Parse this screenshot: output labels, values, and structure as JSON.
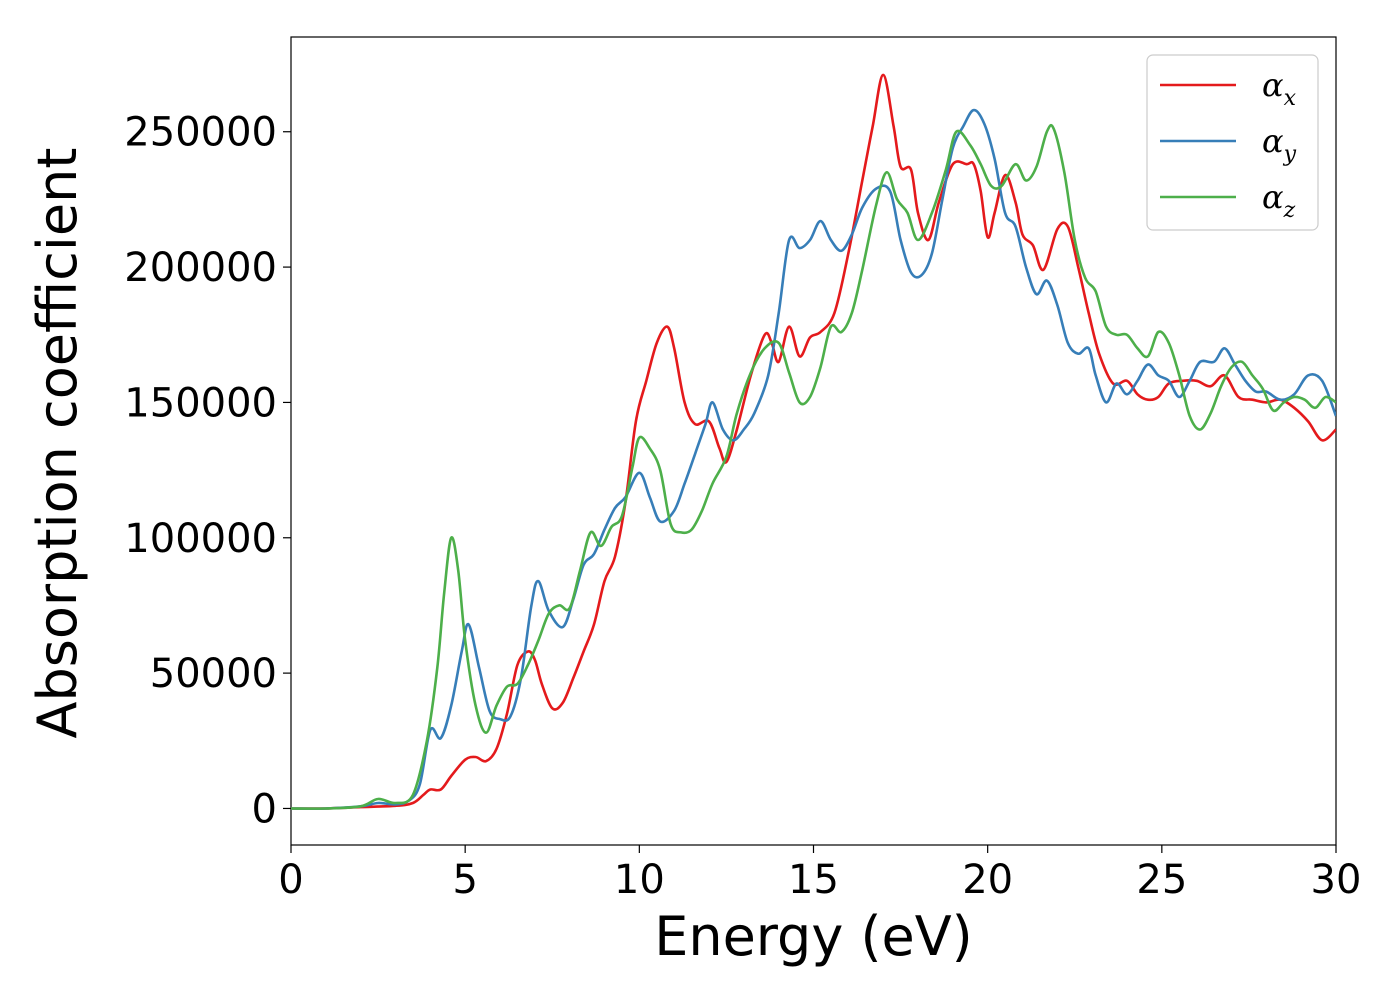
{
  "chart_data": {
    "type": "line",
    "title": "",
    "xlabel": "Energy (eV)",
    "ylabel": "Absorption coefficient",
    "xlim": [
      0,
      30
    ],
    "ylim": [
      -13500,
      285000
    ],
    "xticks": [
      0,
      5,
      10,
      15,
      20,
      25,
      30
    ],
    "yticks": [
      0,
      50000,
      100000,
      150000,
      200000,
      250000
    ],
    "grid": false,
    "legend_position": "top-right",
    "series": [
      {
        "name": "αx",
        "name_base": "α",
        "name_sub": "x",
        "color": "#e41a1c",
        "points": [
          [
            0,
            0
          ],
          [
            1,
            0
          ],
          [
            2,
            500
          ],
          [
            3,
            1000
          ],
          [
            3.5,
            2000
          ],
          [
            3.8,
            5000
          ],
          [
            4,
            7000
          ],
          [
            4.3,
            7000
          ],
          [
            4.6,
            12000
          ],
          [
            5,
            18000
          ],
          [
            5.3,
            19000
          ],
          [
            5.6,
            17500
          ],
          [
            5.9,
            22000
          ],
          [
            6.2,
            35000
          ],
          [
            6.5,
            53000
          ],
          [
            6.8,
            58000
          ],
          [
            7,
            55000
          ],
          [
            7.2,
            46000
          ],
          [
            7.5,
            37000
          ],
          [
            7.8,
            39000
          ],
          [
            8.1,
            48000
          ],
          [
            8.4,
            58000
          ],
          [
            8.7,
            68000
          ],
          [
            9,
            84000
          ],
          [
            9.3,
            93000
          ],
          [
            9.6,
            113000
          ],
          [
            9.9,
            143000
          ],
          [
            10.2,
            158000
          ],
          [
            10.5,
            172000
          ],
          [
            10.8,
            178000
          ],
          [
            11,
            170000
          ],
          [
            11.3,
            150000
          ],
          [
            11.6,
            142000
          ],
          [
            12,
            143000
          ],
          [
            12.3,
            133000
          ],
          [
            12.5,
            128000
          ],
          [
            12.8,
            140000
          ],
          [
            13.2,
            160000
          ],
          [
            13.6,
            175000
          ],
          [
            13.8,
            172000
          ],
          [
            14,
            165000
          ],
          [
            14.3,
            178000
          ],
          [
            14.6,
            167000
          ],
          [
            14.9,
            174000
          ],
          [
            15.2,
            176000
          ],
          [
            15.6,
            183000
          ],
          [
            16,
            205000
          ],
          [
            16.4,
            232000
          ],
          [
            16.7,
            252000
          ],
          [
            17,
            271000
          ],
          [
            17.3,
            252000
          ],
          [
            17.5,
            237000
          ],
          [
            17.8,
            236000
          ],
          [
            18,
            220000
          ],
          [
            18.3,
            210000
          ],
          [
            18.6,
            224000
          ],
          [
            19,
            238000
          ],
          [
            19.4,
            238000
          ],
          [
            19.6,
            238000
          ],
          [
            19.8,
            228000
          ],
          [
            20,
            211000
          ],
          [
            20.2,
            220000
          ],
          [
            20.5,
            234000
          ],
          [
            20.8,
            224000
          ],
          [
            21,
            212000
          ],
          [
            21.3,
            208000
          ],
          [
            21.6,
            199000
          ],
          [
            22,
            214000
          ],
          [
            22.3,
            215000
          ],
          [
            22.6,
            200000
          ],
          [
            22.9,
            183000
          ],
          [
            23.2,
            168000
          ],
          [
            23.6,
            157000
          ],
          [
            24,
            158000
          ],
          [
            24.3,
            153000
          ],
          [
            24.6,
            151000
          ],
          [
            24.9,
            152000
          ],
          [
            25.2,
            157000
          ],
          [
            25.6,
            158000
          ],
          [
            26,
            158000
          ],
          [
            26.4,
            156000
          ],
          [
            26.8,
            160000
          ],
          [
            27.2,
            152000
          ],
          [
            27.6,
            151000
          ],
          [
            28,
            150000
          ],
          [
            28.4,
            151000
          ],
          [
            28.8,
            148000
          ],
          [
            29.2,
            143000
          ],
          [
            29.6,
            136000
          ],
          [
            30,
            140000
          ]
        ]
      },
      {
        "name": "αy",
        "name_base": "α",
        "name_sub": "y",
        "color": "#377eb8",
        "points": [
          [
            0,
            0
          ],
          [
            1,
            0
          ],
          [
            2,
            800
          ],
          [
            2.5,
            2000
          ],
          [
            3,
            1500
          ],
          [
            3.4,
            3000
          ],
          [
            3.7,
            9000
          ],
          [
            4,
            29000
          ],
          [
            4.3,
            26000
          ],
          [
            4.6,
            38000
          ],
          [
            4.9,
            58000
          ],
          [
            5.1,
            68000
          ],
          [
            5.4,
            52000
          ],
          [
            5.7,
            36000
          ],
          [
            6,
            33000
          ],
          [
            6.3,
            34000
          ],
          [
            6.6,
            48000
          ],
          [
            6.9,
            75000
          ],
          [
            7.1,
            84000
          ],
          [
            7.4,
            73000
          ],
          [
            7.8,
            67000
          ],
          [
            8.1,
            77000
          ],
          [
            8.4,
            90000
          ],
          [
            8.7,
            94000
          ],
          [
            9,
            103000
          ],
          [
            9.3,
            111000
          ],
          [
            9.6,
            115000
          ],
          [
            10,
            124000
          ],
          [
            10.3,
            115000
          ],
          [
            10.6,
            106000
          ],
          [
            11,
            110000
          ],
          [
            11.3,
            120000
          ],
          [
            11.6,
            131000
          ],
          [
            11.9,
            142000
          ],
          [
            12.1,
            150000
          ],
          [
            12.4,
            140000
          ],
          [
            12.7,
            136000
          ],
          [
            13,
            140000
          ],
          [
            13.3,
            146000
          ],
          [
            13.7,
            160000
          ],
          [
            14,
            183000
          ],
          [
            14.3,
            210000
          ],
          [
            14.6,
            207000
          ],
          [
            14.9,
            210000
          ],
          [
            15.2,
            217000
          ],
          [
            15.5,
            210000
          ],
          [
            15.8,
            206000
          ],
          [
            16.1,
            212000
          ],
          [
            16.4,
            222000
          ],
          [
            16.8,
            229000
          ],
          [
            17.2,
            228000
          ],
          [
            17.5,
            210000
          ],
          [
            17.8,
            198000
          ],
          [
            18.1,
            197000
          ],
          [
            18.4,
            205000
          ],
          [
            18.7,
            225000
          ],
          [
            19,
            244000
          ],
          [
            19.3,
            252000
          ],
          [
            19.6,
            258000
          ],
          [
            19.9,
            253000
          ],
          [
            20.2,
            240000
          ],
          [
            20.5,
            220000
          ],
          [
            20.8,
            215000
          ],
          [
            21.1,
            200000
          ],
          [
            21.4,
            190000
          ],
          [
            21.7,
            195000
          ],
          [
            22,
            186000
          ],
          [
            22.3,
            172000
          ],
          [
            22.6,
            168000
          ],
          [
            22.9,
            170000
          ],
          [
            23.1,
            160000
          ],
          [
            23.4,
            150000
          ],
          [
            23.7,
            157000
          ],
          [
            24,
            153000
          ],
          [
            24.3,
            158000
          ],
          [
            24.6,
            164000
          ],
          [
            24.9,
            160000
          ],
          [
            25.2,
            158000
          ],
          [
            25.5,
            152000
          ],
          [
            25.8,
            158000
          ],
          [
            26.1,
            165000
          ],
          [
            26.5,
            165000
          ],
          [
            26.8,
            170000
          ],
          [
            27.1,
            164000
          ],
          [
            27.4,
            158000
          ],
          [
            27.7,
            154000
          ],
          [
            28,
            154000
          ],
          [
            28.4,
            151000
          ],
          [
            28.8,
            153000
          ],
          [
            29.2,
            160000
          ],
          [
            29.6,
            158000
          ],
          [
            30,
            145000
          ]
        ]
      },
      {
        "name": "αz",
        "name_base": "α",
        "name_sub": "z",
        "color": "#4daf4a",
        "points": [
          [
            0,
            0
          ],
          [
            1,
            0
          ],
          [
            2,
            800
          ],
          [
            2.5,
            3500
          ],
          [
            3,
            2000
          ],
          [
            3.5,
            5000
          ],
          [
            3.9,
            25000
          ],
          [
            4.2,
            52000
          ],
          [
            4.4,
            80000
          ],
          [
            4.6,
            100000
          ],
          [
            4.8,
            88000
          ],
          [
            5,
            62000
          ],
          [
            5.3,
            38000
          ],
          [
            5.6,
            28000
          ],
          [
            5.9,
            38000
          ],
          [
            6.2,
            45000
          ],
          [
            6.5,
            46000
          ],
          [
            6.8,
            53000
          ],
          [
            7.1,
            62000
          ],
          [
            7.4,
            72000
          ],
          [
            7.7,
            75000
          ],
          [
            8,
            74000
          ],
          [
            8.3,
            88000
          ],
          [
            8.6,
            102000
          ],
          [
            8.9,
            97000
          ],
          [
            9.2,
            104000
          ],
          [
            9.5,
            108000
          ],
          [
            9.8,
            126000
          ],
          [
            10,
            137000
          ],
          [
            10.3,
            133000
          ],
          [
            10.6,
            125000
          ],
          [
            10.9,
            105000
          ],
          [
            11.2,
            102000
          ],
          [
            11.5,
            103000
          ],
          [
            11.8,
            110000
          ],
          [
            12.1,
            120000
          ],
          [
            12.5,
            130000
          ],
          [
            12.8,
            146000
          ],
          [
            13.2,
            161000
          ],
          [
            13.6,
            170000
          ],
          [
            14,
            172000
          ],
          [
            14.3,
            161000
          ],
          [
            14.6,
            150000
          ],
          [
            14.9,
            152000
          ],
          [
            15.2,
            163000
          ],
          [
            15.5,
            178000
          ],
          [
            15.8,
            176000
          ],
          [
            16.1,
            183000
          ],
          [
            16.4,
            199000
          ],
          [
            16.8,
            223000
          ],
          [
            17.1,
            235000
          ],
          [
            17.4,
            225000
          ],
          [
            17.7,
            220000
          ],
          [
            18,
            210000
          ],
          [
            18.4,
            220000
          ],
          [
            18.8,
            236000
          ],
          [
            19.1,
            250000
          ],
          [
            19.5,
            245000
          ],
          [
            19.8,
            238000
          ],
          [
            20.1,
            230000
          ],
          [
            20.4,
            230000
          ],
          [
            20.8,
            238000
          ],
          [
            21.1,
            232000
          ],
          [
            21.4,
            237000
          ],
          [
            21.7,
            250000
          ],
          [
            21.9,
            251000
          ],
          [
            22.2,
            235000
          ],
          [
            22.5,
            210000
          ],
          [
            22.8,
            196000
          ],
          [
            23.1,
            191000
          ],
          [
            23.4,
            178000
          ],
          [
            23.7,
            175000
          ],
          [
            24,
            175000
          ],
          [
            24.3,
            170000
          ],
          [
            24.6,
            167000
          ],
          [
            24.9,
            176000
          ],
          [
            25.2,
            172000
          ],
          [
            25.5,
            160000
          ],
          [
            25.8,
            145000
          ],
          [
            26.1,
            140000
          ],
          [
            26.4,
            146000
          ],
          [
            26.7,
            156000
          ],
          [
            27,
            163000
          ],
          [
            27.3,
            165000
          ],
          [
            27.6,
            160000
          ],
          [
            27.9,
            155000
          ],
          [
            28.2,
            147000
          ],
          [
            28.5,
            150000
          ],
          [
            28.8,
            152000
          ],
          [
            29.1,
            151000
          ],
          [
            29.4,
            148000
          ],
          [
            29.7,
            152000
          ],
          [
            30,
            150000
          ]
        ]
      }
    ]
  }
}
